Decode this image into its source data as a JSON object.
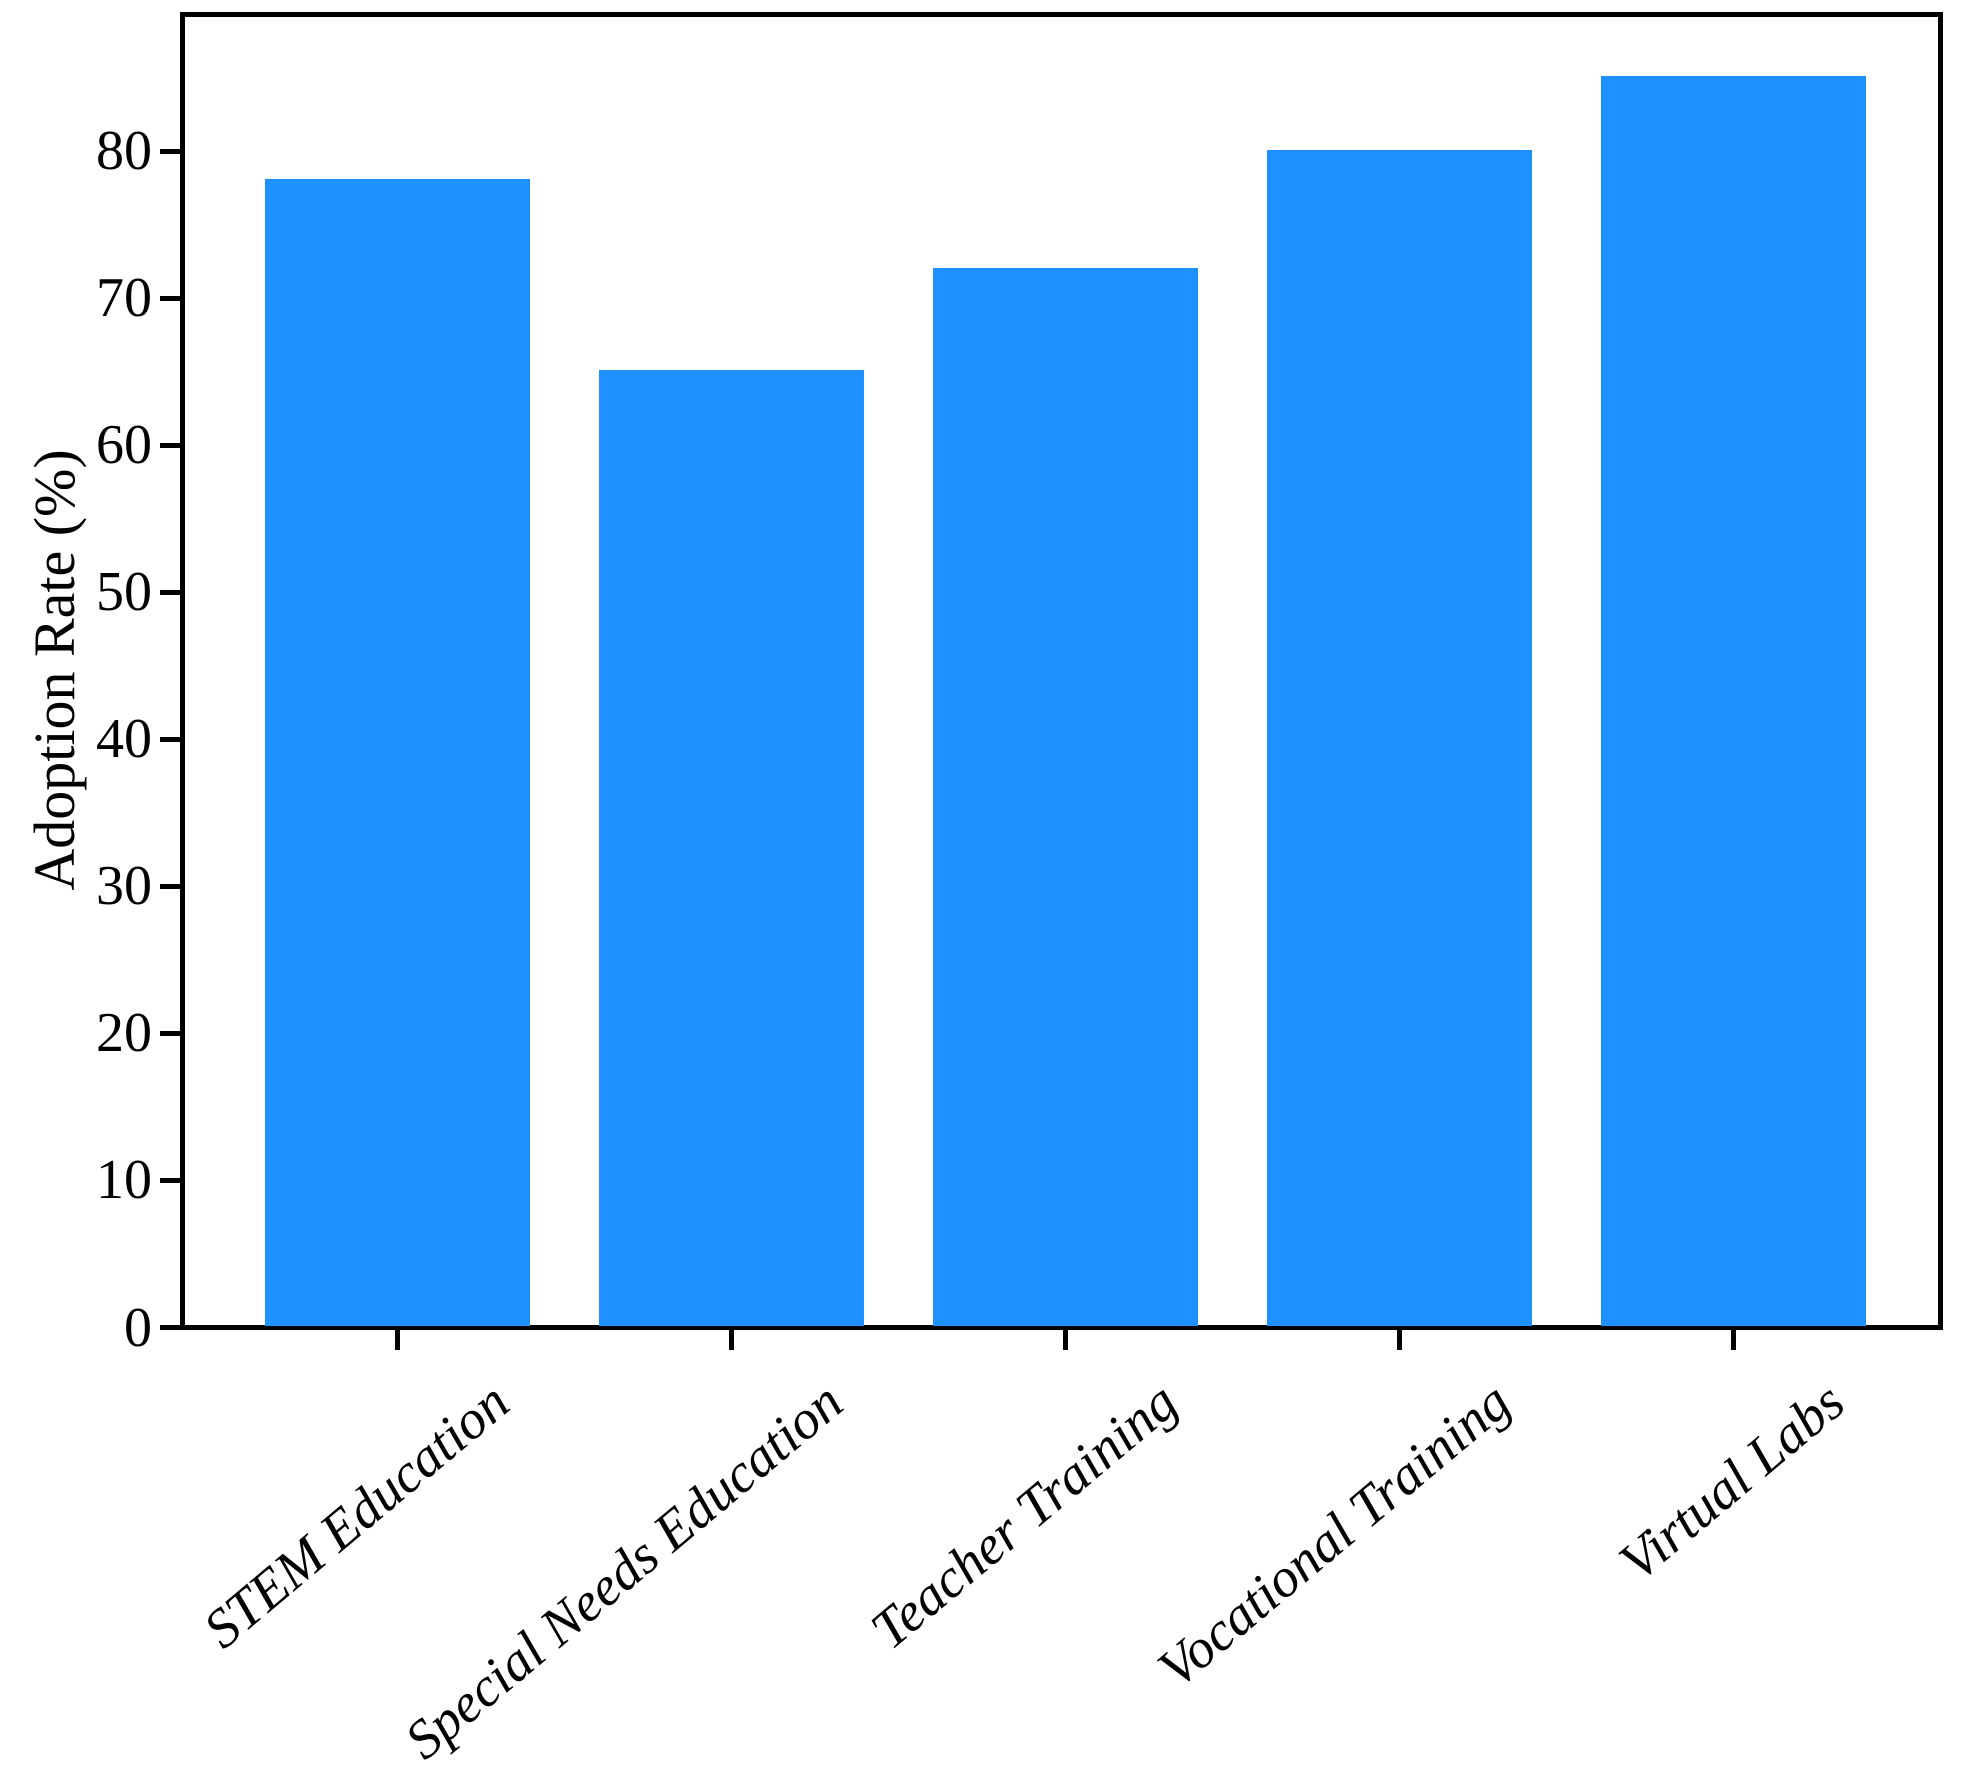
{
  "chart_data": {
    "type": "bar",
    "categories": [
      "STEM Education",
      "Special Needs Education",
      "Teacher Training",
      "Vocational Training",
      "Virtual Labs"
    ],
    "values": [
      78,
      65,
      72,
      80,
      85
    ],
    "title": "",
    "xlabel": "",
    "ylabel": "Adoption Rate (%)",
    "yticks": [
      0,
      10,
      20,
      30,
      40,
      50,
      60,
      70,
      80
    ],
    "ylim": [
      0,
      89.25
    ],
    "bar_color": "#1E90FF",
    "axis_color": "#000000",
    "background": "#FFFFFF",
    "grid": false,
    "legend_position": "none"
  }
}
